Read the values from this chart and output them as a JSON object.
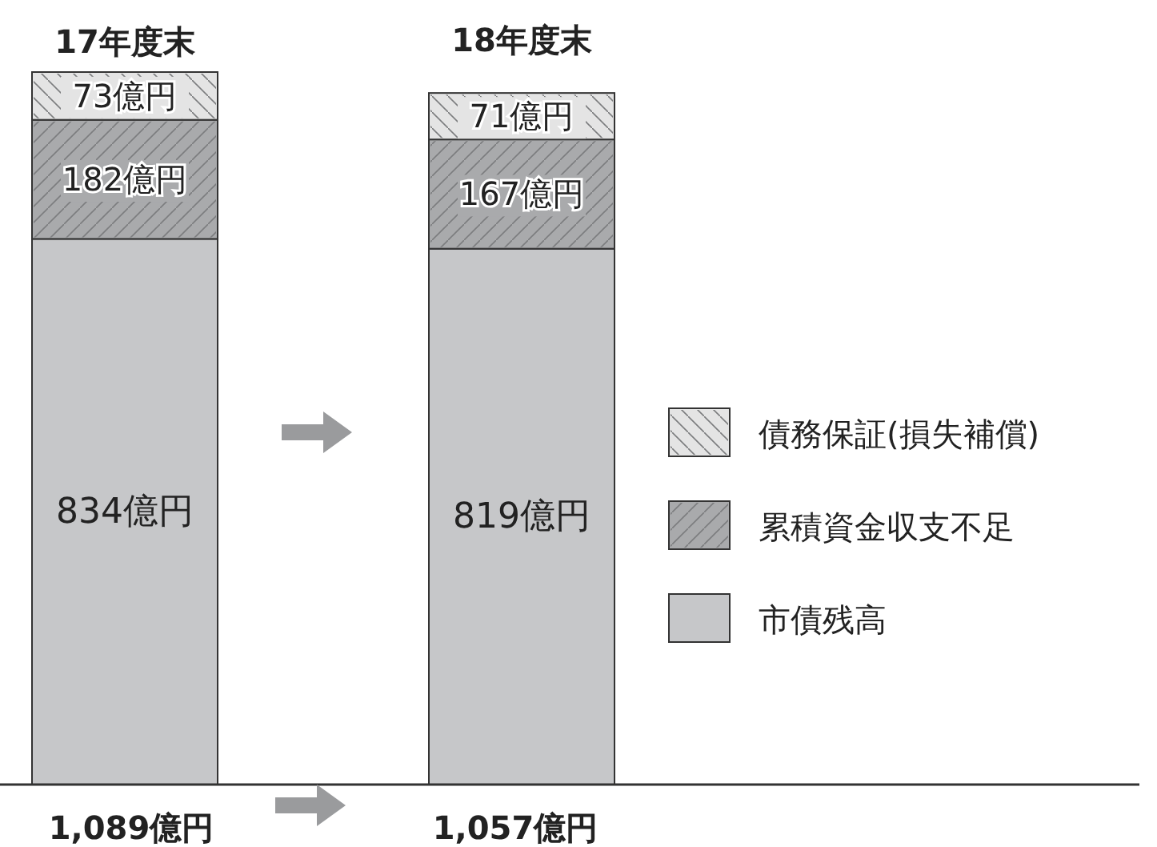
{
  "chart_data": {
    "type": "bar",
    "stacked": true,
    "categories": [
      "17年度末",
      "18年度末"
    ],
    "series": [
      {
        "name": "市債残高",
        "color": "#c6c7c9",
        "values": [
          834,
          819
        ],
        "value_labels": [
          "834億円",
          "819億円"
        ]
      },
      {
        "name": "累積資金収支不足",
        "color": "#a9aaac",
        "values": [
          182,
          167
        ],
        "value_labels": [
          "182億円",
          "167億円"
        ]
      },
      {
        "name": "債務保証(損失補償)",
        "color": "#e4e4e4",
        "values": [
          73,
          71
        ],
        "value_labels": [
          "73億円",
          "71億円"
        ]
      }
    ],
    "totals": [
      "1,089億円",
      "1,057億円"
    ],
    "legend": "right"
  }
}
